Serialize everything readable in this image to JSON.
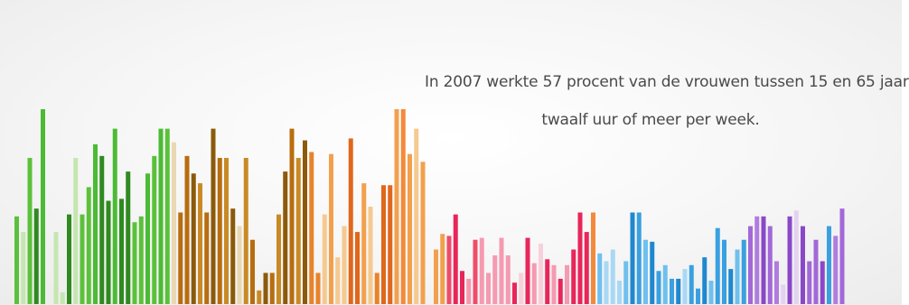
{
  "caption": {
    "line1": "In 2007 werkte 57 procent van de vrouwen tussen 15 en 65 jaar",
    "line2": "twaalf uur of meer per week."
  },
  "chart_data": {
    "type": "bar",
    "title": "",
    "xlabel": "",
    "ylabel": "",
    "ylim": [
      0,
      100
    ],
    "grid": false,
    "legend": "none",
    "bars": [
      {
        "value": 45,
        "color": "#5cc13a"
      },
      {
        "value": 37,
        "color": "#c5e6b0"
      },
      {
        "value": 75,
        "color": "#5cc13a"
      },
      {
        "value": 49,
        "color": "#2f8a1f"
      },
      {
        "value": 100,
        "color": "#4bbb35"
      },
      {
        "value": 0,
        "color": "#ffffff"
      },
      {
        "value": 37,
        "color": "#c5e6b0"
      },
      {
        "value": 6,
        "color": "#c5e6b0"
      },
      {
        "value": 46,
        "color": "#2f8a1f"
      },
      {
        "value": 75,
        "color": "#c5e6b0"
      },
      {
        "value": 46,
        "color": "#5cc13a"
      },
      {
        "value": 60,
        "color": "#5cc13a"
      },
      {
        "value": 82,
        "color": "#4bbb35"
      },
      {
        "value": 76,
        "color": "#2f8a1f"
      },
      {
        "value": 53,
        "color": "#2f8a1f"
      },
      {
        "value": 90,
        "color": "#4bbb35"
      },
      {
        "value": 54,
        "color": "#2f8a1f"
      },
      {
        "value": 68,
        "color": "#2f8a1f"
      },
      {
        "value": 42,
        "color": "#5cc13a"
      },
      {
        "value": 45,
        "color": "#5cc13a"
      },
      {
        "value": 67,
        "color": "#4bbb35"
      },
      {
        "value": 76,
        "color": "#5cc13a"
      },
      {
        "value": 90,
        "color": "#4bbb35"
      },
      {
        "value": 90,
        "color": "#5cc13a"
      },
      {
        "value": 83,
        "color": "#e9d8b2"
      },
      {
        "value": 47,
        "color": "#b86d0f"
      },
      {
        "value": 76,
        "color": "#b86d0f"
      },
      {
        "value": 67,
        "color": "#8b5a0a"
      },
      {
        "value": 62,
        "color": "#c98a26"
      },
      {
        "value": 47,
        "color": "#b86d0f"
      },
      {
        "value": 90,
        "color": "#8b5a0a"
      },
      {
        "value": 75,
        "color": "#b86d0f"
      },
      {
        "value": 75,
        "color": "#c98a26"
      },
      {
        "value": 49,
        "color": "#8b5a0a"
      },
      {
        "value": 40,
        "color": "#e9d8b2"
      },
      {
        "value": 75,
        "color": "#c98a26"
      },
      {
        "value": 33,
        "color": "#b86d0f"
      },
      {
        "value": 7,
        "color": "#c98a26"
      },
      {
        "value": 16,
        "color": "#8b5a0a"
      },
      {
        "value": 16,
        "color": "#b86d0f"
      },
      {
        "value": 46,
        "color": "#c98a26"
      },
      {
        "value": 68,
        "color": "#8b5a0a"
      },
      {
        "value": 90,
        "color": "#b86d0f"
      },
      {
        "value": 75,
        "color": "#c98a26"
      },
      {
        "value": 84,
        "color": "#8b5a0a"
      },
      {
        "value": 78,
        "color": "#e8832a"
      },
      {
        "value": 16,
        "color": "#e8832a"
      },
      {
        "value": 46,
        "color": "#f5c98f"
      },
      {
        "value": 77,
        "color": "#f3a04d"
      },
      {
        "value": 24,
        "color": "#f5c98f"
      },
      {
        "value": 40,
        "color": "#f5c98f"
      },
      {
        "value": 85,
        "color": "#e0671c"
      },
      {
        "value": 37,
        "color": "#e0671c"
      },
      {
        "value": 62,
        "color": "#f3a04d"
      },
      {
        "value": 50,
        "color": "#f5c98f"
      },
      {
        "value": 16,
        "color": "#e8832a"
      },
      {
        "value": 61,
        "color": "#e0671c"
      },
      {
        "value": 61,
        "color": "#e0671c"
      },
      {
        "value": 100,
        "color": "#f3a04d"
      },
      {
        "value": 100,
        "color": "#f38a3a"
      },
      {
        "value": 77,
        "color": "#f3a04d"
      },
      {
        "value": 90,
        "color": "#f5c98f"
      },
      {
        "value": 73,
        "color": "#f3a04d"
      },
      {
        "value": 0,
        "color": "#ffffff"
      },
      {
        "value": 28,
        "color": "#f3a04d"
      },
      {
        "value": 36,
        "color": "#f3a04d"
      },
      {
        "value": 35,
        "color": "#ef4c6b"
      },
      {
        "value": 46,
        "color": "#e8265a"
      },
      {
        "value": 17,
        "color": "#e8265a"
      },
      {
        "value": 13,
        "color": "#f59ab0"
      },
      {
        "value": 33,
        "color": "#ef4c6b"
      },
      {
        "value": 34,
        "color": "#f59ab0"
      },
      {
        "value": 16,
        "color": "#f59ab0"
      },
      {
        "value": 25,
        "color": "#f59ab0"
      },
      {
        "value": 34,
        "color": "#f59ab0"
      },
      {
        "value": 25,
        "color": "#f59ab0"
      },
      {
        "value": 11,
        "color": "#e8265a"
      },
      {
        "value": 16,
        "color": "#f8d0da"
      },
      {
        "value": 34,
        "color": "#e8265a"
      },
      {
        "value": 21,
        "color": "#f59ab0"
      },
      {
        "value": 31,
        "color": "#f8d0da"
      },
      {
        "value": 23,
        "color": "#e8265a"
      },
      {
        "value": 20,
        "color": "#f59ab0"
      },
      {
        "value": 13,
        "color": "#e8265a"
      },
      {
        "value": 20,
        "color": "#f59ab0"
      },
      {
        "value": 28,
        "color": "#e8265a"
      },
      {
        "value": 47,
        "color": "#e8265a"
      },
      {
        "value": 37,
        "color": "#e8265a"
      },
      {
        "value": 47,
        "color": "#f38a3a"
      },
      {
        "value": 26,
        "color": "#6ec0ee"
      },
      {
        "value": 22,
        "color": "#a8d8f5"
      },
      {
        "value": 28,
        "color": "#a8d8f5"
      },
      {
        "value": 12,
        "color": "#a8d8f5"
      },
      {
        "value": 22,
        "color": "#6ec0ee"
      },
      {
        "value": 47,
        "color": "#1f88d0"
      },
      {
        "value": 47,
        "color": "#3aa0e0"
      },
      {
        "value": 33,
        "color": "#6ec0ee"
      },
      {
        "value": 32,
        "color": "#1f88d0"
      },
      {
        "value": 17,
        "color": "#3aa0e0"
      },
      {
        "value": 20,
        "color": "#6ec0ee"
      },
      {
        "value": 13,
        "color": "#3aa0e0"
      },
      {
        "value": 13,
        "color": "#1f88d0"
      },
      {
        "value": 18,
        "color": "#a8d8f5"
      },
      {
        "value": 20,
        "color": "#3aa0e0"
      },
      {
        "value": 8,
        "color": "#3aa0e0"
      },
      {
        "value": 24,
        "color": "#1f88d0"
      },
      {
        "value": 12,
        "color": "#6ec0ee"
      },
      {
        "value": 39,
        "color": "#3aa0e0"
      },
      {
        "value": 33,
        "color": "#3aa0e0"
      },
      {
        "value": 18,
        "color": "#1f88d0"
      },
      {
        "value": 28,
        "color": "#6ec0ee"
      },
      {
        "value": 33,
        "color": "#3aa0e0"
      },
      {
        "value": 40,
        "color": "#a268d8"
      },
      {
        "value": 45,
        "color": "#b07ce0"
      },
      {
        "value": 45,
        "color": "#8a48c8"
      },
      {
        "value": 40,
        "color": "#a268d8"
      },
      {
        "value": 22,
        "color": "#b07ce0"
      },
      {
        "value": 10,
        "color": "#e3d2f2"
      },
      {
        "value": 45,
        "color": "#8a48c8"
      },
      {
        "value": 48,
        "color": "#e3d2f2"
      },
      {
        "value": 40,
        "color": "#8a48c8"
      },
      {
        "value": 22,
        "color": "#a268d8"
      },
      {
        "value": 33,
        "color": "#a268d8"
      },
      {
        "value": 22,
        "color": "#8a48c8"
      },
      {
        "value": 40,
        "color": "#3aa0e0"
      },
      {
        "value": 35,
        "color": "#b07ce0"
      },
      {
        "value": 49,
        "color": "#a268d8"
      }
    ]
  }
}
